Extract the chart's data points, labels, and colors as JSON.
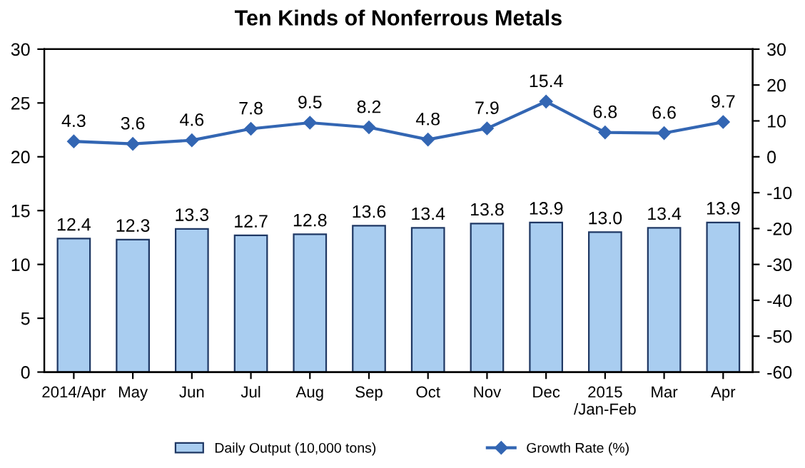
{
  "chart_data": {
    "type": "bar",
    "title": "Ten Kinds of Nonferrous Metals",
    "categories": [
      "2014/Apr",
      "May",
      "Jun",
      "Jul",
      "Aug",
      "Sep",
      "Oct",
      "Nov",
      "Dec",
      "2015\n/Jan-Feb",
      "Mar",
      "Apr"
    ],
    "series": [
      {
        "name": "Daily Output (10,000 tons)",
        "color": "#a9cdf0",
        "values": [
          12.4,
          12.3,
          13.3,
          12.7,
          12.8,
          13.6,
          13.4,
          13.8,
          13.9,
          13.0,
          13.4,
          13.9
        ],
        "value_labels": [
          "12.4",
          "12.3",
          "13.3",
          "12.7",
          "12.8",
          "13.6",
          "13.4",
          "13.8",
          "13.9",
          "13.0",
          "13.4",
          "13.9"
        ]
      },
      {
        "name": "Growth Rate (%)",
        "type": "line",
        "axis": "y2",
        "color": "#3366b3",
        "marker": "diamond",
        "values": [
          4.3,
          3.6,
          4.6,
          7.8,
          9.5,
          8.2,
          4.8,
          7.9,
          15.4,
          6.8,
          6.6,
          9.7
        ],
        "value_labels": [
          "4.3",
          "3.6",
          "4.6",
          "7.8",
          "9.5",
          "8.2",
          "4.8",
          "7.9",
          "15.4",
          "6.8",
          "6.6",
          "9.7"
        ]
      }
    ],
    "ylim": [
      0,
      30
    ],
    "yticks": [
      0,
      5,
      10,
      15,
      20,
      25,
      30
    ],
    "y2lim": [
      -60,
      30
    ],
    "y2ticks": [
      -60,
      -50,
      -40,
      -30,
      -20,
      -10,
      0,
      10,
      20,
      30
    ],
    "legend": "bottom",
    "grid": false
  }
}
